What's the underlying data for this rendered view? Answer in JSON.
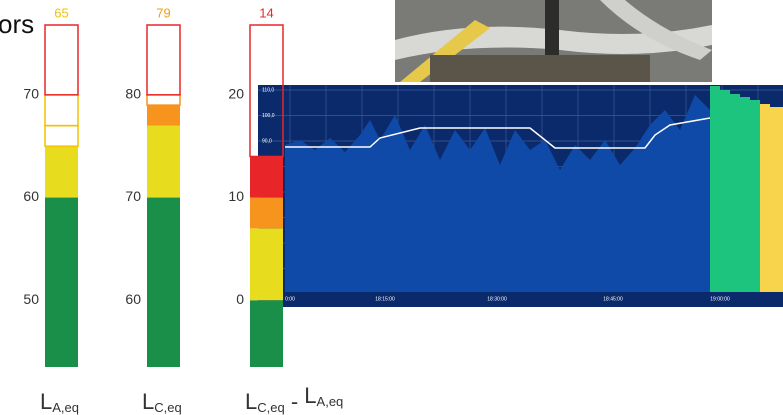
{
  "header": {
    "text": "ors"
  },
  "meters": [
    {
      "value": 65,
      "value_color": "#f2c200",
      "ylim": [
        43.5,
        76.8
      ],
      "ticks": [
        50,
        60,
        70
      ],
      "outline": "#e8262a",
      "segments": [
        {
          "top": 60,
          "fill": "#1a8f4a"
        },
        {
          "top": 65,
          "fill": "#e8dc1e"
        },
        {
          "top": 67,
          "stroke": "#f2c200"
        },
        {
          "top": 70,
          "stroke": "#f2c200"
        }
      ],
      "label": [
        {
          "text": "L",
          "sub": false
        },
        {
          "text": "A,eq",
          "sub": true
        }
      ]
    },
    {
      "value": 79,
      "value_color": "#f39c12",
      "ylim": [
        53.5,
        86.8
      ],
      "ticks": [
        60,
        70,
        80
      ],
      "outline": "#e8262a",
      "segments": [
        {
          "top": 70,
          "fill": "#1a8f4a"
        },
        {
          "top": 77,
          "fill": "#e8dc1e"
        },
        {
          "top": 79,
          "fill": "#f7941d"
        },
        {
          "top": 80,
          "stroke": "#f7941d"
        }
      ],
      "label": [
        {
          "text": "L",
          "sub": false
        },
        {
          "text": "C,eq",
          "sub": true
        }
      ]
    },
    {
      "value": 14,
      "value_color": "#e8262a",
      "ylim": [
        -6.5,
        26.8
      ],
      "ticks": [
        0,
        10,
        20
      ],
      "outline": "#e8262a",
      "segments": [
        {
          "top": 0,
          "fill": "#1a8f4a"
        },
        {
          "top": 7,
          "fill": "#e8dc1e"
        },
        {
          "top": 10,
          "fill": "#f7941d"
        },
        {
          "top": 14,
          "fill": "#e8262a"
        }
      ],
      "label": [
        {
          "text": "L",
          "sub": false
        },
        {
          "text": "C,eq",
          "sub": true
        },
        {
          "text": " - ",
          "sub": false
        },
        {
          "text": "L",
          "sub": false
        },
        {
          "text": "A,eq",
          "sub": true
        }
      ]
    }
  ],
  "overlay_chart": {
    "y_labels": [
      "110,0",
      "100,0",
      "90,0"
    ],
    "x_labels": [
      "0:00",
      "18:15:00",
      "18:30:00",
      "18:45:00",
      "19:00:00"
    ]
  }
}
